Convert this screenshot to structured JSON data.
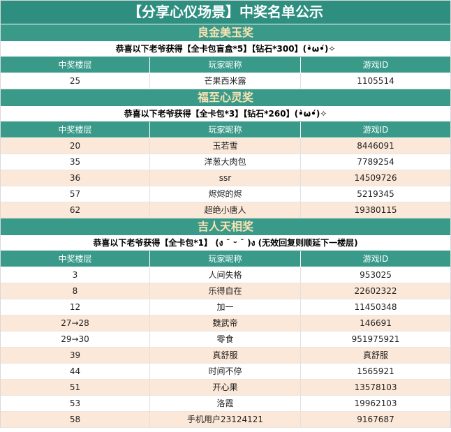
{
  "title": "【分享心仪场景】中奖名单公示",
  "headers": [
    "中奖楼层",
    "玩家昵称",
    "游戏ID"
  ],
  "sections": [
    {
      "award": "良金美玉奖",
      "prize": "恭喜以下老爷获得【全卡包盲盒*5】【钻石*300】(•̀ω•́)✧",
      "rows": [
        [
          "25",
          "芒果西米露",
          "1105514"
        ]
      ]
    },
    {
      "award": "福至心灵奖",
      "prize": "恭喜以下老爷获得【全卡包*3】【钻石*260】(•̀ω•́)✧",
      "rows": [
        [
          "20",
          "玉若雪",
          "8446091"
        ],
        [
          "35",
          "洋葱大肉包",
          "7789254"
        ],
        [
          "36",
          "ssr",
          "14509726"
        ],
        [
          "57",
          "烬烬的烬",
          "5219345"
        ],
        [
          "62",
          "超绝小唐人",
          "19380115"
        ]
      ]
    },
    {
      "award": "吉人天相奖",
      "prize": "恭喜以下老爷获得【全卡包*1】 (ง ˘ ᵕ ˘ )ง (无效回复则顺延下一楼层)",
      "rows": [
        [
          "3",
          "人间失格",
          "953025"
        ],
        [
          "8",
          "乐得自在",
          "22602322"
        ],
        [
          "12",
          "加一",
          "11450348"
        ],
        [
          "27→28",
          "魏武帝",
          "146691"
        ],
        [
          "29→30",
          "零食",
          "951975921"
        ],
        [
          "39",
          "真舒服",
          "真舒服"
        ],
        [
          "44",
          "时间不停",
          "1565921"
        ],
        [
          "51",
          "开心果",
          "13578103"
        ],
        [
          "53",
          "洛霞",
          "19962103"
        ],
        [
          "58",
          "手机用户23124121",
          "9167687"
        ]
      ]
    }
  ],
  "colors": {
    "title_bg": "#2e8f80",
    "section_bg": "#3a9a8a",
    "award_text": "#fbe3b2",
    "alt_row_bg": "#fce8d8"
  }
}
